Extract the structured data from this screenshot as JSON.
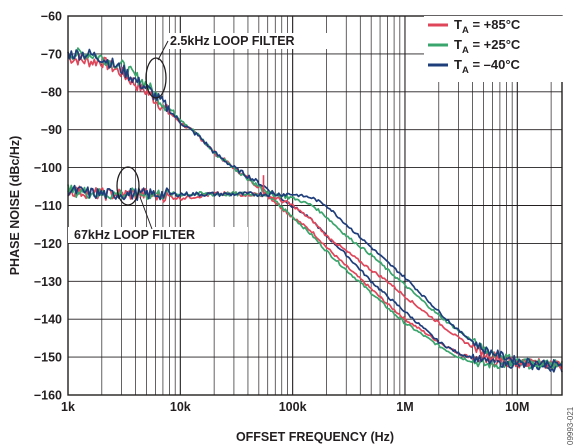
{
  "chart_data": {
    "type": "line",
    "xlabel": "OFFSET FREQUENCY (Hz)",
    "ylabel": "PHASE NOISE (dBc/Hz)",
    "x_scale": "log",
    "xlim": [
      1000,
      25000000
    ],
    "ylim": [
      -160,
      -60
    ],
    "x_ticks": [
      {
        "value": 1000,
        "label": "1k"
      },
      {
        "value": 10000,
        "label": "10k"
      },
      {
        "value": 100000,
        "label": "100k"
      },
      {
        "value": 1000000,
        "label": "1M"
      },
      {
        "value": 10000000,
        "label": "10M"
      }
    ],
    "y_ticks": [
      {
        "value": -60,
        "label": "−60"
      },
      {
        "value": -70,
        "label": "−70"
      },
      {
        "value": -80,
        "label": "−80"
      },
      {
        "value": -90,
        "label": "−90"
      },
      {
        "value": -100,
        "label": "−100"
      },
      {
        "value": -110,
        "label": "−110"
      },
      {
        "value": -120,
        "label": "−120"
      },
      {
        "value": -130,
        "label": "−130"
      },
      {
        "value": -140,
        "label": "−140"
      },
      {
        "value": -150,
        "label": "−150"
      },
      {
        "value": -160,
        "label": "−160"
      }
    ],
    "grid": true,
    "legend_position": "top-right",
    "legend": [
      {
        "prefix": "T",
        "sub": "A",
        "suffix": " = +85°C",
        "color": "#e0465a"
      },
      {
        "prefix": "T",
        "sub": "A",
        "suffix": " = +25°C",
        "color": "#3aa56c"
      },
      {
        "prefix": "T",
        "sub": "A",
        "suffix": " = –40°C",
        "color": "#1e3d7b"
      }
    ],
    "annotations": [
      {
        "text": "2.5kHz LOOP FILTER"
      },
      {
        "text": "67kHz LOOP FILTER"
      }
    ],
    "series": [
      {
        "filter": "2.5kHz LOOP FILTER",
        "temperature": "+85°C",
        "color": "#e0465a",
        "x": [
          1000,
          1500,
          2000,
          3000,
          4000,
          5000,
          7000,
          10000,
          15000,
          20000,
          30000,
          50000,
          70000,
          100000,
          150000,
          200000,
          300000,
          500000,
          700000,
          1000000,
          2000000,
          3000000,
          5000000,
          10000000,
          25000000
        ],
        "y": [
          -71,
          -72,
          -72,
          -75,
          -78,
          -80,
          -84,
          -88,
          -92,
          -96,
          -100,
          -105,
          -109,
          -113,
          -117,
          -121,
          -126,
          -132,
          -136,
          -140,
          -146,
          -149,
          -151,
          -152,
          -152
        ]
      },
      {
        "filter": "2.5kHz LOOP FILTER",
        "temperature": "+25°C",
        "color": "#3aa56c",
        "x": [
          1000,
          1500,
          2000,
          3000,
          4000,
          5000,
          7000,
          10000,
          15000,
          20000,
          30000,
          50000,
          70000,
          100000,
          150000,
          200000,
          300000,
          500000,
          700000,
          1000000,
          2000000,
          3000000,
          5000000,
          10000000,
          25000000
        ],
        "y": [
          -70,
          -70,
          -71,
          -73,
          -76,
          -78,
          -83,
          -87,
          -92,
          -96,
          -100,
          -105,
          -109,
          -113,
          -118,
          -122,
          -127,
          -133,
          -137,
          -141,
          -147,
          -150,
          -152,
          -152,
          -152
        ]
      },
      {
        "filter": "2.5kHz LOOP FILTER",
        "temperature": "–40°C",
        "color": "#1e3d7b",
        "x": [
          1000,
          1500,
          2000,
          3000,
          4000,
          5000,
          7000,
          10000,
          15000,
          20000,
          30000,
          50000,
          70000,
          100000,
          150000,
          200000,
          300000,
          500000,
          700000,
          1000000,
          2000000,
          3000000,
          5000000,
          10000000,
          25000000
        ],
        "y": [
          -70,
          -70,
          -71,
          -74,
          -77,
          -79,
          -83,
          -88,
          -92,
          -96,
          -100,
          -104,
          -107,
          -110,
          -114,
          -118,
          -123,
          -130,
          -134,
          -138,
          -146,
          -149,
          -151,
          -152,
          -153
        ]
      },
      {
        "filter": "67kHz LOOP FILTER",
        "temperature": "+85°C",
        "color": "#e0465a",
        "x": [
          1000,
          2000,
          5000,
          10000,
          20000,
          30000,
          50000,
          70000,
          100000,
          150000,
          200000,
          300000,
          500000,
          700000,
          1000000,
          2000000,
          3000000,
          5000000,
          10000000,
          25000000
        ],
        "y": [
          -106,
          -107,
          -107,
          -108,
          -107,
          -107,
          -107,
          -108,
          -110,
          -114,
          -118,
          -122,
          -127,
          -130,
          -134,
          -141,
          -145,
          -149,
          -151,
          -152
        ]
      },
      {
        "filter": "67kHz LOOP FILTER",
        "temperature": "+25°C",
        "color": "#3aa56c",
        "x": [
          1000,
          2000,
          5000,
          10000,
          20000,
          30000,
          50000,
          70000,
          100000,
          150000,
          200000,
          300000,
          500000,
          700000,
          1000000,
          2000000,
          3000000,
          5000000,
          10000000,
          25000000
        ],
        "y": [
          -106,
          -107,
          -107,
          -107,
          -107,
          -107,
          -107,
          -107,
          -108,
          -110,
          -113,
          -118,
          -123,
          -127,
          -131,
          -139,
          -143,
          -148,
          -151,
          -152
        ]
      },
      {
        "filter": "67kHz LOOP FILTER",
        "temperature": "–40°C",
        "color": "#1e3d7b",
        "x": [
          1000,
          2000,
          5000,
          10000,
          20000,
          30000,
          50000,
          70000,
          100000,
          150000,
          200000,
          300000,
          500000,
          700000,
          1000000,
          2000000,
          3000000,
          5000000,
          10000000,
          25000000
        ],
        "y": [
          -106,
          -107,
          -107,
          -107,
          -107,
          -107,
          -107,
          -107,
          -107,
          -108,
          -110,
          -115,
          -121,
          -125,
          -129,
          -138,
          -143,
          -148,
          -151,
          -152
        ]
      }
    ],
    "spur": {
      "x": 55000,
      "y": -102,
      "color": "#e0465a"
    }
  },
  "figure_id": "09993-021"
}
